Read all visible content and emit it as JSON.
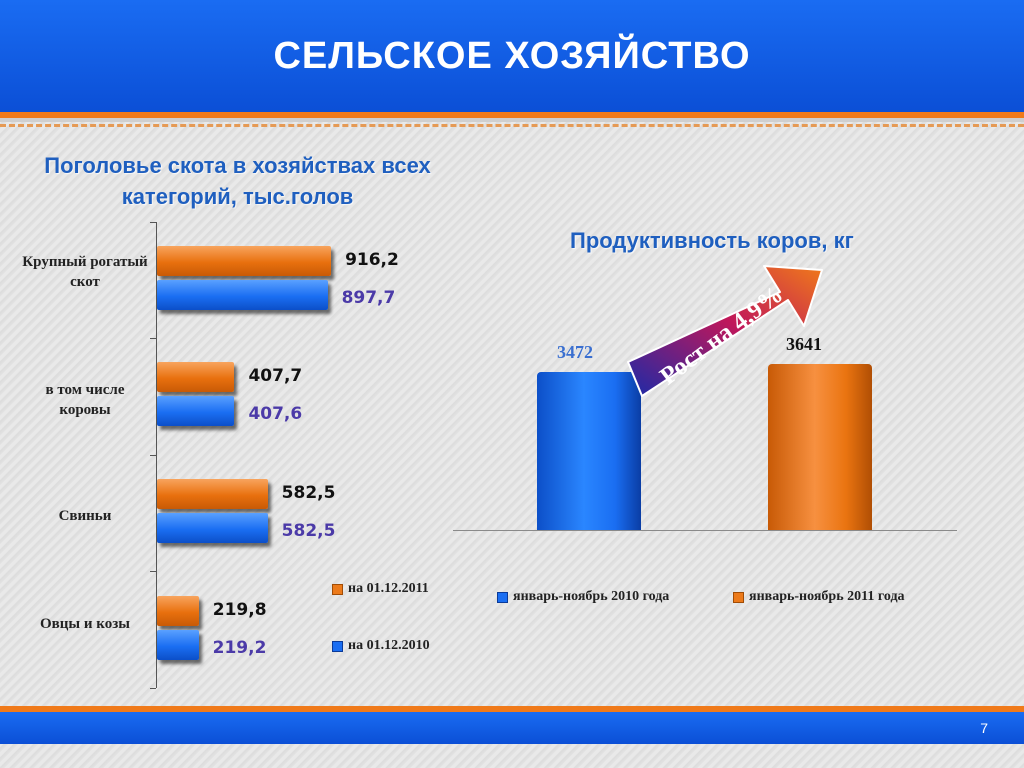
{
  "header": {
    "title": "СЕЛЬСКОЕ ХОЗЯЙСТВО"
  },
  "footer": {
    "page_number": "7"
  },
  "colors": {
    "orange": "#ec7a1a",
    "blue": "#1a6ef2",
    "banner": "#0b4fd6"
  },
  "chart_data": [
    {
      "type": "bar",
      "orientation": "horizontal",
      "title": "Поголовье скота в хозяйствах всех категорий, тыс.голов",
      "categories": [
        "Крупный рогатый скот",
        "в том числе коровы",
        "Свиньи",
        "Овцы и козы"
      ],
      "series": [
        {
          "name": "на 01.12.2011",
          "color": "#ec7a1a",
          "values": [
            916.2,
            407.7,
            582.5,
            219.8
          ],
          "labels": [
            "916,2",
            "407,7",
            "582,5",
            "219,8"
          ]
        },
        {
          "name": "на 01.12.2010",
          "color": "#1a6ef2",
          "values": [
            897.7,
            407.6,
            582.5,
            219.2
          ],
          "labels": [
            "897,7",
            "407,6",
            "582,5",
            "219,2"
          ]
        }
      ],
      "legend_placement": "bottom-right"
    },
    {
      "type": "bar",
      "title": "Продуктивность коров, кг",
      "categories": [
        "январь-ноябрь 2010 года",
        "январь-ноябрь 2011 года"
      ],
      "values": [
        3472,
        3641
      ],
      "labels": [
        "3472",
        "3641"
      ],
      "colors": [
        "#1a6ef2",
        "#ec7a1a"
      ],
      "annotation": "Рост на 4,9%",
      "legend_placement": "bottom"
    }
  ]
}
